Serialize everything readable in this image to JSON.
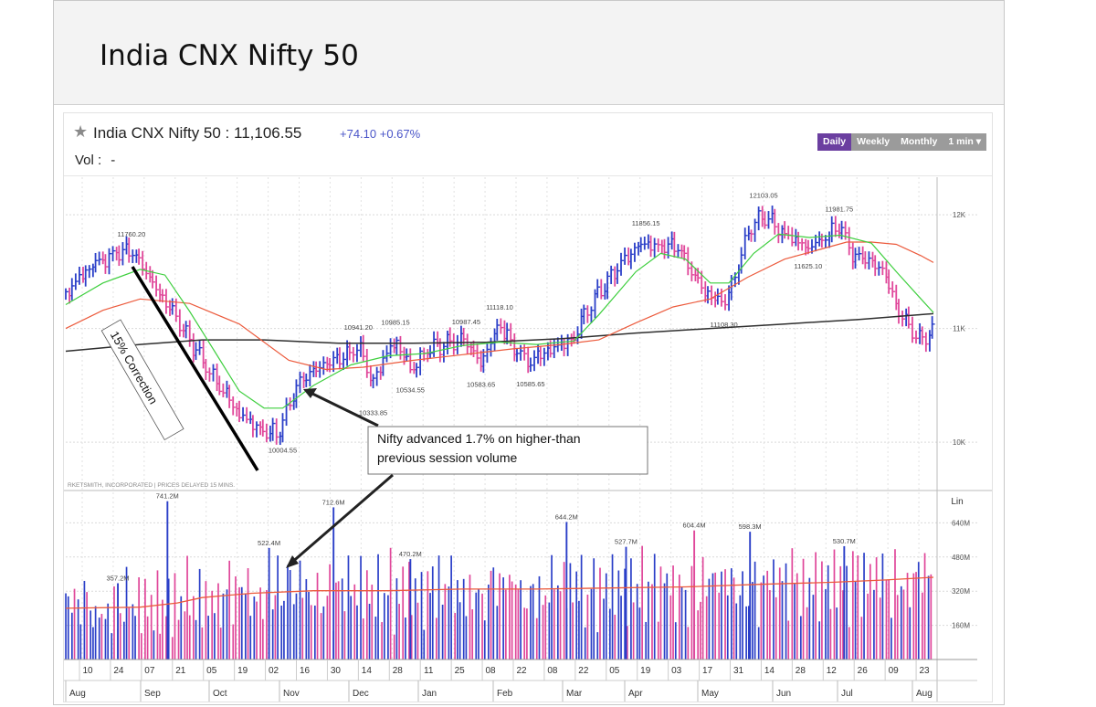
{
  "page": {
    "title": "India CNX Nifty 50"
  },
  "quote": {
    "name": "India CNX Nifty 50 : 11,106.55",
    "change": "+74.10 +0.67%",
    "vol_label": "Vol :",
    "vol_value": "-"
  },
  "periods": [
    {
      "label": "Daily",
      "active": true
    },
    {
      "label": "Weekly",
      "active": false
    },
    {
      "label": "Monthly",
      "active": false
    },
    {
      "label": "1 min ▾",
      "active": false
    }
  ],
  "colors": {
    "up": "#2b3fc8",
    "down": "#e0479a",
    "ma_short": "#3fcf3f",
    "ma_mid": "#ec5a3c",
    "ma_long": "#2e2e2e",
    "vol_ma": "#ec5a3c"
  },
  "chart_data": {
    "type": "bar",
    "title": "India CNX Nifty 50",
    "credit": "RKETSMITH, INCORPORATED | PRICES DELAYED 15 MINS.",
    "price_axis": {
      "ylim": [
        9640,
        12330
      ],
      "ticks": [
        {
          "value": 12000,
          "label": "12K"
        },
        {
          "value": 11000,
          "label": "11K"
        },
        {
          "value": 10000,
          "label": "10K"
        }
      ]
    },
    "volume_axis": {
      "ylim": [
        0,
        770
      ],
      "scale_label": "Lin",
      "ticks": [
        {
          "value": 640,
          "label": "640M"
        },
        {
          "value": 480,
          "label": "480M"
        },
        {
          "value": 320,
          "label": "320M"
        },
        {
          "value": 160,
          "label": "160M"
        }
      ]
    },
    "x_ticks": [
      "10",
      "24",
      "07",
      "21",
      "05",
      "19",
      "02",
      "16",
      "30",
      "14",
      "28",
      "11",
      "25",
      "08",
      "22",
      "08",
      "22",
      "05",
      "19",
      "03",
      "17",
      "31",
      "14",
      "28",
      "12",
      "26",
      "09",
      "23"
    ],
    "months": [
      "Aug",
      "Sep",
      "Oct",
      "Nov",
      "Dec",
      "Jan",
      "Feb",
      "Mar",
      "Apr",
      "May",
      "Jun",
      "Jul",
      "Aug"
    ],
    "price_labels": [
      {
        "label": "11760.20",
        "value": 11760.2,
        "index": 53,
        "pos": "above"
      },
      {
        "label": "10004.55",
        "value": 10004.55,
        "index": 175,
        "pos": "below"
      },
      {
        "label": "10941.20",
        "value": 10941.2,
        "index": 236,
        "pos": "above"
      },
      {
        "label": "10333.85",
        "value": 10333.85,
        "index": 248,
        "pos": "below"
      },
      {
        "label": "10985.15",
        "value": 10985.15,
        "index": 266,
        "pos": "above"
      },
      {
        "label": "10534.55",
        "value": 10534.55,
        "index": 278,
        "pos": "below"
      },
      {
        "label": "10987.45",
        "value": 10987.45,
        "index": 323,
        "pos": "above"
      },
      {
        "label": "10583.65",
        "value": 10583.65,
        "index": 335,
        "pos": "below"
      },
      {
        "label": "11118.10",
        "value": 11118.1,
        "index": 350,
        "pos": "above"
      },
      {
        "label": "10585.65",
        "value": 10585.65,
        "index": 375,
        "pos": "below"
      },
      {
        "label": "11856.15",
        "value": 11856.15,
        "index": 468,
        "pos": "above"
      },
      {
        "label": "11108.30",
        "value": 11108.3,
        "index": 531,
        "pos": "below"
      },
      {
        "label": "12103.05",
        "value": 12103.05,
        "index": 563,
        "pos": "above"
      },
      {
        "label": "11625.10",
        "value": 11625.1,
        "index": 599,
        "pos": "below"
      },
      {
        "label": "11981.75",
        "value": 11981.75,
        "index": 624,
        "pos": "above"
      }
    ],
    "volume_labels": [
      {
        "label": "741.2M",
        "value": 741.2,
        "index": 82
      },
      {
        "label": "357.2M",
        "value": 357.2,
        "index": 42
      },
      {
        "label": "522.4M",
        "value": 522.4,
        "index": 164
      },
      {
        "label": "712.6M",
        "value": 712.6,
        "index": 216
      },
      {
        "label": "470.2M",
        "value": 470.2,
        "index": 278
      },
      {
        "label": "644.2M",
        "value": 644.2,
        "index": 404
      },
      {
        "label": "527.7M",
        "value": 527.7,
        "index": 452
      },
      {
        "label": "604.4M",
        "value": 604.4,
        "index": 507
      },
      {
        "label": "598.3M",
        "value": 598.3,
        "index": 552
      },
      {
        "label": "530.7M",
        "value": 530.7,
        "index": 628
      }
    ],
    "anchors": [
      [
        0,
        11280
      ],
      [
        10,
        11440
      ],
      [
        22,
        11540
      ],
      [
        35,
        11620
      ],
      [
        53,
        11700
      ],
      [
        64,
        11530
      ],
      [
        76,
        11310
      ],
      [
        90,
        11080
      ],
      [
        104,
        10820
      ],
      [
        116,
        10600
      ],
      [
        128,
        10420
      ],
      [
        142,
        10240
      ],
      [
        158,
        10120
      ],
      [
        171,
        10060
      ],
      [
        187,
        10500
      ],
      [
        200,
        10620
      ],
      [
        212,
        10690
      ],
      [
        224,
        10760
      ],
      [
        236,
        10860
      ],
      [
        248,
        10540
      ],
      [
        258,
        10760
      ],
      [
        266,
        10900
      ],
      [
        278,
        10620
      ],
      [
        292,
        10800
      ],
      [
        306,
        10870
      ],
      [
        316,
        10890
      ],
      [
        323,
        10910
      ],
      [
        335,
        10700
      ],
      [
        342,
        10880
      ],
      [
        350,
        11050
      ],
      [
        362,
        10800
      ],
      [
        375,
        10680
      ],
      [
        385,
        10780
      ],
      [
        396,
        10850
      ],
      [
        408,
        10900
      ],
      [
        420,
        11160
      ],
      [
        432,
        11350
      ],
      [
        444,
        11510
      ],
      [
        456,
        11660
      ],
      [
        468,
        11740
      ],
      [
        480,
        11700
      ],
      [
        493,
        11750
      ],
      [
        505,
        11520
      ],
      [
        518,
        11300
      ],
      [
        531,
        11210
      ],
      [
        540,
        11450
      ],
      [
        552,
        11880
      ],
      [
        563,
        11980
      ],
      [
        575,
        11880
      ],
      [
        588,
        11790
      ],
      [
        599,
        11730
      ],
      [
        610,
        11800
      ],
      [
        624,
        11890
      ],
      [
        636,
        11620
      ],
      [
        648,
        11590
      ],
      [
        660,
        11500
      ],
      [
        670,
        11200
      ],
      [
        682,
        11000
      ],
      [
        690,
        10900
      ],
      [
        700,
        11010
      ]
    ],
    "ma_short": [
      [
        0,
        11210
      ],
      [
        30,
        11400
      ],
      [
        60,
        11520
      ],
      [
        80,
        11470
      ],
      [
        100,
        11150
      ],
      [
        120,
        10800
      ],
      [
        140,
        10450
      ],
      [
        160,
        10300
      ],
      [
        175,
        10300
      ],
      [
        200,
        10500
      ],
      [
        230,
        10680
      ],
      [
        260,
        10760
      ],
      [
        290,
        10780
      ],
      [
        320,
        10850
      ],
      [
        350,
        10880
      ],
      [
        380,
        10860
      ],
      [
        410,
        10890
      ],
      [
        430,
        11120
      ],
      [
        460,
        11500
      ],
      [
        480,
        11660
      ],
      [
        500,
        11610
      ],
      [
        520,
        11400
      ],
      [
        535,
        11400
      ],
      [
        555,
        11660
      ],
      [
        575,
        11830
      ],
      [
        600,
        11800
      ],
      [
        625,
        11820
      ],
      [
        650,
        11750
      ],
      [
        670,
        11500
      ],
      [
        690,
        11260
      ],
      [
        700,
        11140
      ]
    ],
    "ma_mid": [
      [
        0,
        11000
      ],
      [
        30,
        11160
      ],
      [
        60,
        11260
      ],
      [
        100,
        11220
      ],
      [
        140,
        11040
      ],
      [
        180,
        10720
      ],
      [
        210,
        10640
      ],
      [
        240,
        10660
      ],
      [
        280,
        10720
      ],
      [
        320,
        10770
      ],
      [
        360,
        10820
      ],
      [
        400,
        10860
      ],
      [
        430,
        10900
      ],
      [
        460,
        11050
      ],
      [
        490,
        11190
      ],
      [
        520,
        11260
      ],
      [
        550,
        11450
      ],
      [
        580,
        11610
      ],
      [
        610,
        11700
      ],
      [
        630,
        11760
      ],
      [
        650,
        11760
      ],
      [
        670,
        11740
      ],
      [
        690,
        11640
      ],
      [
        700,
        11580
      ]
    ],
    "ma_long": [
      [
        0,
        10800
      ],
      [
        60,
        10860
      ],
      [
        110,
        10900
      ],
      [
        160,
        10900
      ],
      [
        220,
        10870
      ],
      [
        280,
        10870
      ],
      [
        340,
        10880
      ],
      [
        400,
        10910
      ],
      [
        460,
        10960
      ],
      [
        520,
        11000
      ],
      [
        580,
        11040
      ],
      [
        640,
        11080
      ],
      [
        700,
        11130
      ]
    ],
    "vol_ma": [
      [
        0,
        240
      ],
      [
        60,
        245
      ],
      [
        90,
        265
      ],
      [
        110,
        290
      ],
      [
        150,
        310
      ],
      [
        200,
        322
      ],
      [
        260,
        322
      ],
      [
        320,
        330
      ],
      [
        380,
        330
      ],
      [
        440,
        335
      ],
      [
        500,
        340
      ],
      [
        560,
        352
      ],
      [
        620,
        362
      ],
      [
        660,
        372
      ],
      [
        700,
        385
      ]
    ],
    "annotations": [
      {
        "label": "15% Correction",
        "type": "trendline-callout"
      },
      {
        "label": "Nifty advanced 1.7% on higher-than previous session volume",
        "type": "callout"
      }
    ]
  }
}
